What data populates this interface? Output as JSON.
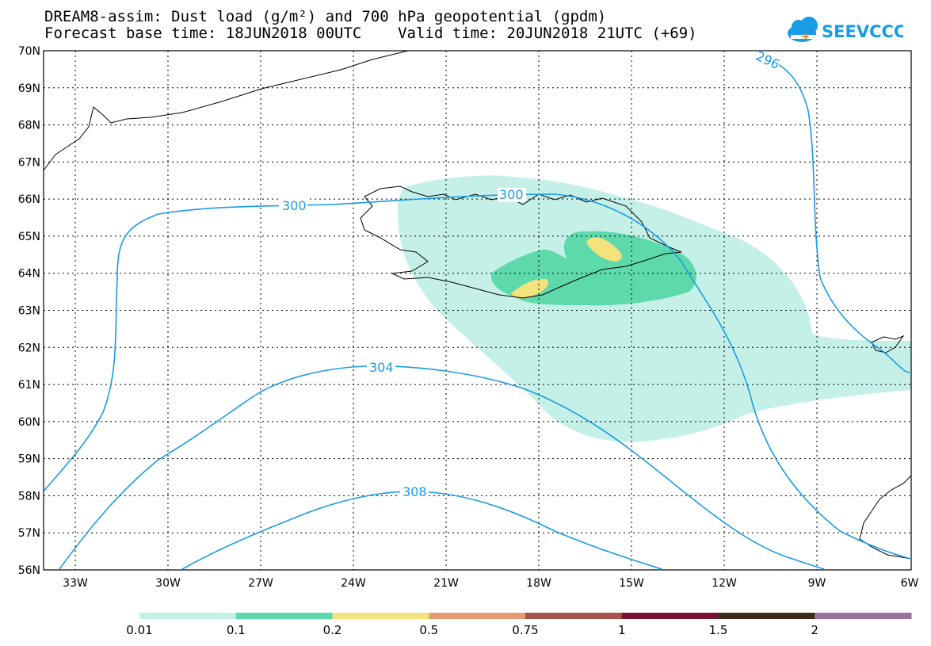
{
  "header": {
    "title_line1": "DREAM8-assim: Dust load (g/m²) and 700 hPa geopotential (gpdm)",
    "title_line2": "Forecast base time: 18JUN2018 00UTC    Valid time: 20JUN2018 21UTC (+69)"
  },
  "logo": {
    "text": "SEEVCCC",
    "color": "#1a9be6"
  },
  "axes": {
    "lat_labels": [
      "70N",
      "69N",
      "68N",
      "67N",
      "66N",
      "65N",
      "64N",
      "63N",
      "62N",
      "61N",
      "60N",
      "59N",
      "58N",
      "57N",
      "56N"
    ],
    "lon_labels": [
      "33W",
      "30W",
      "27W",
      "24W",
      "21W",
      "18W",
      "15W",
      "12W",
      "9W",
      "6W"
    ]
  },
  "contours": {
    "color": "#1a9be6",
    "labels": [
      "296",
      "300",
      "300",
      "304",
      "308"
    ]
  },
  "colorbar": {
    "colors": [
      "#c5f0e8",
      "#5ed9ac",
      "#f4e27c",
      "#e59a72",
      "#a6534e",
      "#7c1030",
      "#3c2a17",
      "#9a71a2"
    ],
    "labels": [
      "0.01",
      "0.1",
      "0.2",
      "0.5",
      "0.75",
      "1",
      "1.5",
      "2"
    ]
  }
}
